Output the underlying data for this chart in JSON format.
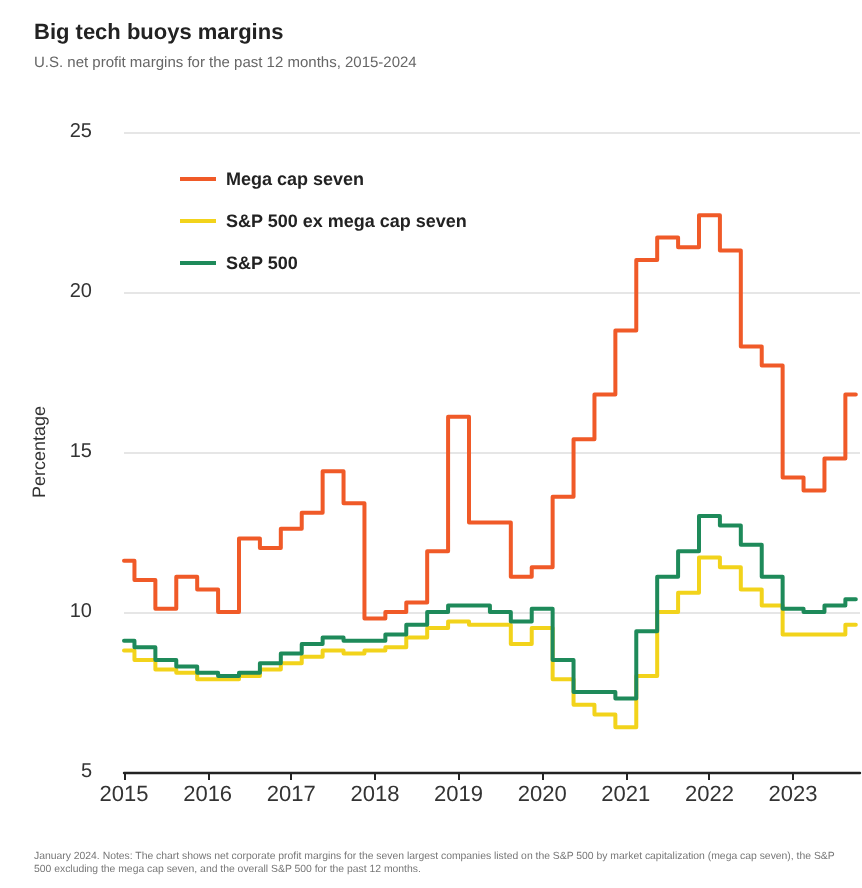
{
  "chart_data": {
    "type": "step",
    "title": "Big tech buoys margins",
    "subtitle": "U.S. net profit margins for the past 12 months, 2015-2024",
    "ylabel": "Percentage",
    "annotations": [
      "January 2024. Notes: The chart shows net corporate profit margins for the seven largest companies listed on the S&P 500 by market capitalization (mega cap seven), the S&P 500 excluding the mega cap seven, and the overall S&P 500 for the past 12 months."
    ],
    "x": [
      2015,
      2015.25,
      2015.5,
      2015.75,
      2016,
      2016.25,
      2016.5,
      2016.75,
      2017,
      2017.25,
      2017.5,
      2017.75,
      2018,
      2018.25,
      2018.5,
      2018.75,
      2019,
      2019.25,
      2019.5,
      2019.75,
      2020,
      2020.25,
      2020.5,
      2020.75,
      2021,
      2021.25,
      2021.5,
      2021.75,
      2022,
      2022.25,
      2022.5,
      2022.75,
      2023,
      2023.25,
      2023.5,
      2023.75
    ],
    "series": [
      {
        "name": "Mega cap seven",
        "color": "#f05a28",
        "values": [
          11.6,
          11.0,
          10.1,
          11.1,
          10.7,
          10.0,
          12.3,
          12.0,
          12.6,
          13.1,
          14.4,
          13.4,
          9.8,
          10.0,
          10.3,
          11.9,
          16.1,
          12.8,
          12.8,
          11.1,
          11.4,
          13.6,
          15.4,
          16.8,
          18.8,
          21.0,
          21.7,
          21.4,
          22.4,
          21.3,
          18.3,
          17.7,
          14.2,
          13.8,
          14.8,
          16.8
        ]
      },
      {
        "name": "S&P 500 ex mega cap seven",
        "color": "#f2d31b",
        "values": [
          8.8,
          8.5,
          8.2,
          8.1,
          7.9,
          7.9,
          8.0,
          8.2,
          8.4,
          8.6,
          8.8,
          8.7,
          8.8,
          8.9,
          9.2,
          9.5,
          9.7,
          9.6,
          9.6,
          9.0,
          9.5,
          7.9,
          7.1,
          6.8,
          6.4,
          8.0,
          10.0,
          10.6,
          11.7,
          11.4,
          10.7,
          10.2,
          9.3,
          9.3,
          9.3,
          9.6
        ]
      },
      {
        "name": "S&P 500",
        "color": "#1e8a5a",
        "values": [
          9.1,
          8.9,
          8.5,
          8.3,
          8.1,
          8.0,
          8.1,
          8.4,
          8.7,
          9.0,
          9.2,
          9.1,
          9.1,
          9.3,
          9.6,
          10.0,
          10.2,
          10.2,
          10.0,
          9.7,
          10.1,
          8.5,
          7.5,
          7.5,
          7.3,
          9.4,
          11.1,
          11.9,
          13.0,
          12.7,
          12.1,
          11.1,
          10.1,
          10.0,
          10.2,
          10.4
        ]
      }
    ],
    "xlim": [
      2015,
      2023.8
    ],
    "xticks": [
      2015,
      2016,
      2017,
      2018,
      2019,
      2020,
      2021,
      2022,
      2023
    ],
    "ylim": [
      5,
      25
    ],
    "yticks": [
      5,
      10,
      15,
      20,
      25
    ],
    "grid": "y",
    "legend": "top left",
    "marker": "none",
    "line_style": "solid"
  }
}
